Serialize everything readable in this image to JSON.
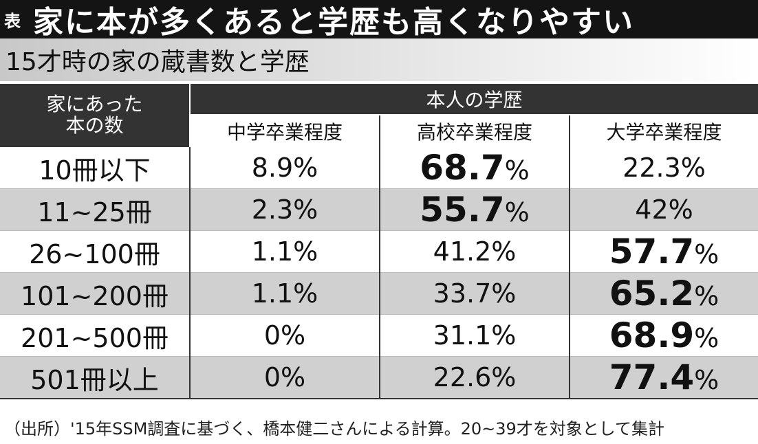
{
  "title": {
    "tag": "表",
    "text": "家に本が多くあると学歴も高くなりやすい"
  },
  "subtitle": "15才時の家の蔵書数と学歴",
  "table": {
    "row_header_line1": "家にあった",
    "row_header_line2": "本の数",
    "group_header": "本人の学歴",
    "columns": [
      "中学卒業程度",
      "高校卒業程度",
      "大学卒業程度"
    ],
    "rows": [
      {
        "label": "10冊以下",
        "values": [
          "8.9",
          "68.7",
          "22.3"
        ],
        "highlight": [
          false,
          true,
          false
        ]
      },
      {
        "label": "11~25冊",
        "values": [
          "2.3",
          "55.7",
          "42"
        ],
        "highlight": [
          false,
          true,
          false
        ]
      },
      {
        "label": "26~100冊",
        "values": [
          "1.1",
          "41.2",
          "57.7"
        ],
        "highlight": [
          false,
          false,
          true
        ]
      },
      {
        "label": "101~200冊",
        "values": [
          "1.1",
          "33.7",
          "65.2"
        ],
        "highlight": [
          false,
          false,
          true
        ]
      },
      {
        "label": "201~500冊",
        "values": [
          "0",
          "31.1",
          "68.9"
        ],
        "highlight": [
          false,
          false,
          true
        ]
      },
      {
        "label": "501冊以上",
        "values": [
          "0",
          "22.6",
          "77.4"
        ],
        "highlight": [
          false,
          false,
          true
        ]
      }
    ],
    "unit": "%"
  },
  "footnote": "（出所）'15年SSM調査に基づく、橋本健二さんによる計算。20~39才を対象として集計",
  "colors": {
    "header_bg": "#333333",
    "title_bg": "#141414",
    "shade_row": "#d0d0d0"
  }
}
